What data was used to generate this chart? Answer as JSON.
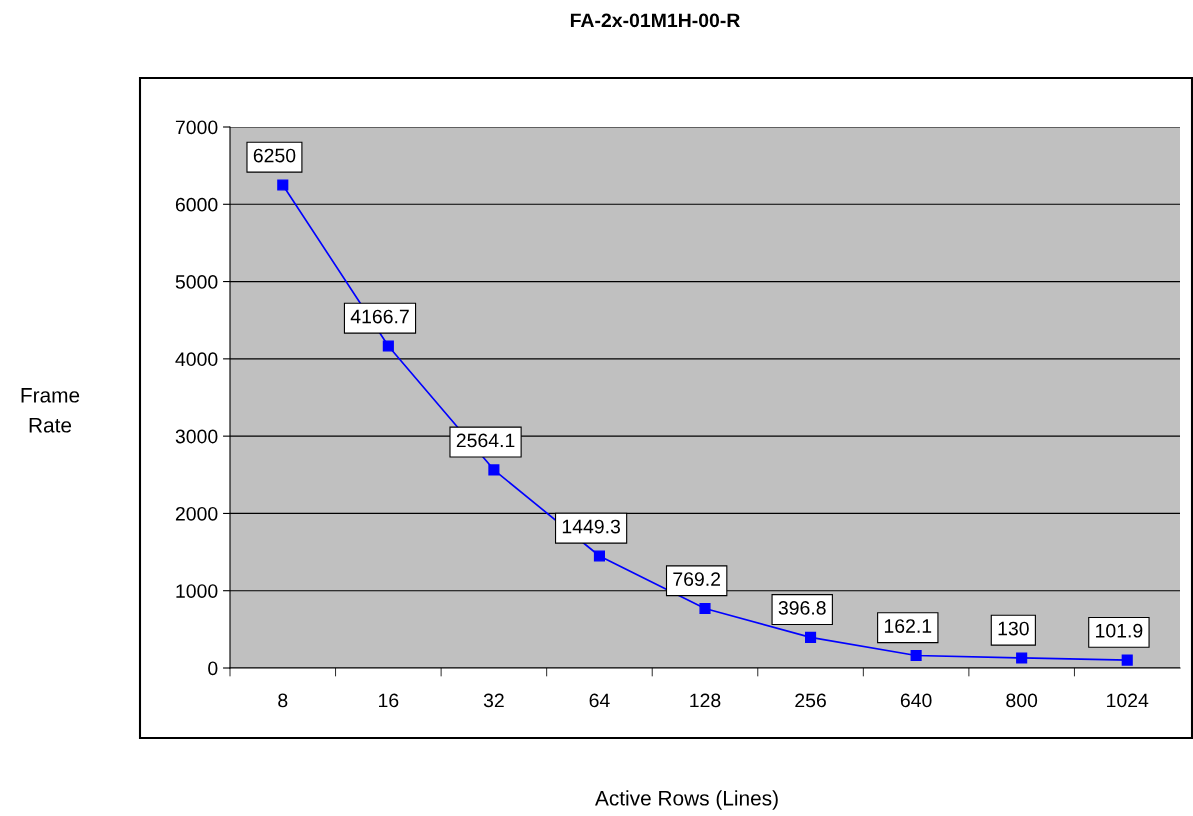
{
  "chart_data": {
    "type": "line",
    "title": "FA-2x-01M1H-00-R",
    "xlabel": "Active Rows (Lines)",
    "ylabel": "Frame\nRate",
    "categories": [
      "8",
      "16",
      "32",
      "64",
      "128",
      "256",
      "640",
      "800",
      "1024"
    ],
    "series": [
      {
        "color": "#0000ff",
        "values": [
          6250,
          4166.7,
          2564.1,
          1449.3,
          769.2,
          396.8,
          162.1,
          130,
          101.9
        ]
      }
    ],
    "ylim": [
      0,
      7000
    ],
    "yticks": [
      0,
      1000,
      2000,
      3000,
      4000,
      5000,
      6000,
      7000
    ],
    "grid": "y",
    "marker": "square",
    "line_style": "solid",
    "data_labels": true,
    "legend": false
  }
}
